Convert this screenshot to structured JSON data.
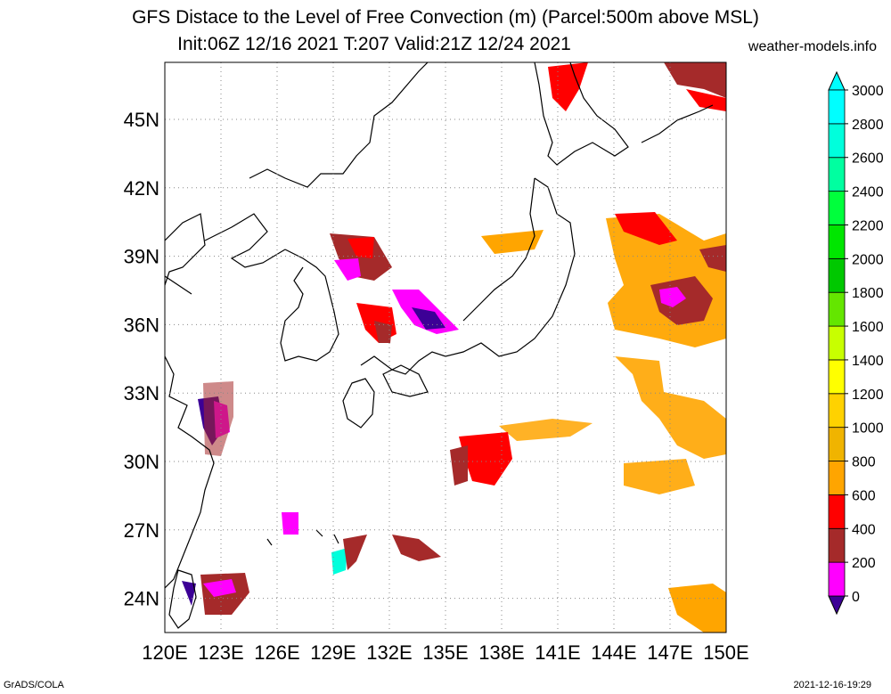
{
  "title_line1": "GFS Distace to the Level of Free Convection (m) (Parcel:500m above MSL)",
  "title_line2": "Init:06Z 12/16 2021 T:207 Valid:21Z 12/24 2021",
  "site": "weather-models.info",
  "footer_left": "GrADS/COLA",
  "footer_right": "2021-12-16-19:29",
  "map": {
    "lon_labels": [
      "120E",
      "123E",
      "126E",
      "129E",
      "132E",
      "135E",
      "138E",
      "141E",
      "144E",
      "147E",
      "150E"
    ],
    "lon_values": [
      120,
      123,
      126,
      129,
      132,
      135,
      138,
      141,
      144,
      147,
      150
    ],
    "lat_labels": [
      "24N",
      "27N",
      "30N",
      "33N",
      "36N",
      "39N",
      "42N",
      "45N"
    ],
    "lat_values": [
      24,
      27,
      30,
      33,
      36,
      39,
      42,
      45
    ],
    "lon_range": [
      120,
      150
    ],
    "lat_range": [
      22.5,
      47.5
    ]
  },
  "colorbar": {
    "labels": [
      "0",
      "200",
      "400",
      "600",
      "800",
      "1000",
      "1200",
      "1400",
      "1600",
      "1800",
      "2000",
      "2200",
      "2400",
      "2600",
      "2800",
      "3000"
    ],
    "colors": [
      "#3c0096",
      "#ff00ff",
      "#a52a2a",
      "#ff0000",
      "#ffa500",
      "#f0b400",
      "#ffd200",
      "#ffff00",
      "#c8ff00",
      "#64e600",
      "#00c800",
      "#00e600",
      "#00ff3c",
      "#00ffa0",
      "#00ffdc",
      "#00ffff"
    ]
  }
}
